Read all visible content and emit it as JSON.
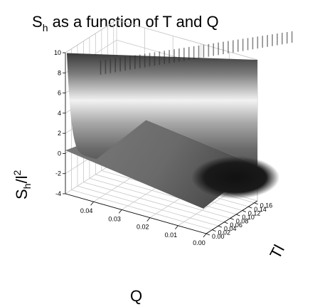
{
  "chart_data": {
    "type": "surface",
    "title": {
      "main": "S",
      "sub": "h",
      "rest": " as a function of T and Q"
    },
    "xlabel": "Q",
    "ylabel": "Tl",
    "zlabel": {
      "main": "S",
      "sub": "h",
      "mid": "/l",
      "sup": "2"
    },
    "x_ticks": [
      "0.04",
      "0.03",
      "0.02",
      "0.01",
      "0.00"
    ],
    "x_tick_values": [
      0.04,
      0.03,
      0.02,
      0.01,
      0.0
    ],
    "y_ticks": [
      "0.00",
      "0.02",
      "0.04",
      "0.06",
      "0.08",
      "0.10",
      "0.12",
      "0.14",
      "0.16"
    ],
    "y_tick_values": [
      0.0,
      0.02,
      0.04,
      0.06,
      0.08,
      0.1,
      0.12,
      0.14,
      0.16
    ],
    "z_ticks": [
      "-4",
      "-2",
      "0",
      "2",
      "4",
      "6",
      "8",
      "10"
    ],
    "z_tick_values": [
      -4,
      -2,
      0,
      2,
      4,
      6,
      8,
      10
    ],
    "xlim": [
      0.0,
      0.05
    ],
    "ylim": [
      0.0,
      0.17
    ],
    "zlim": [
      -4,
      10
    ],
    "colormap": "grayscale",
    "grid": true
  }
}
